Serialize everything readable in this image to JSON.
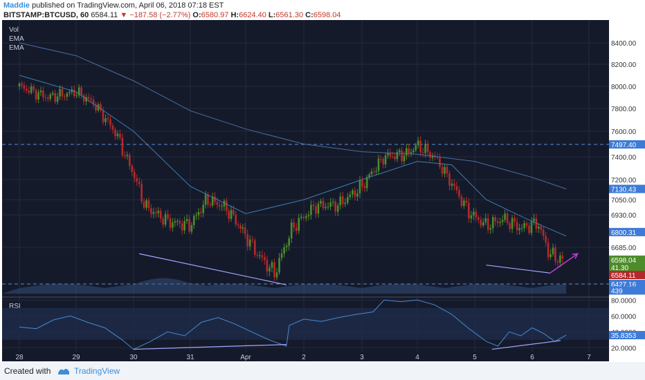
{
  "header": {
    "author": "Maddie",
    "published": "published on TradingView.com, April 06, 2018 07:18 EST",
    "symbol": "BITSTAMP:BTCUSD, 60",
    "last": "6584.11",
    "change": "▼ −187.58 (−2.77%)",
    "o_label": "O:",
    "o_value": "6580.97",
    "h_label": "H:",
    "h_value": "6624.40",
    "l_label": "L:",
    "l_value": "6561.30",
    "c_label": "C:",
    "c_value": "6598.04"
  },
  "legend": [
    "Vol",
    "EMA",
    "EMA"
  ],
  "rsi_label": "RSI",
  "footer": {
    "created": "Created with",
    "brand": "TradingView"
  },
  "colors": {
    "bg": "#151a2b",
    "up": "#4d8c2a",
    "down": "#b32a2a",
    "ema_fast": "#3b7fb0",
    "ema_slow": "#4a6fa0",
    "annotation": "#a0a8ff",
    "arrow": "#c43cd8"
  },
  "chart_data": [
    {
      "type": "candlestick",
      "x_ticks": [
        "28",
        "29",
        "30",
        "31",
        "Apr",
        "2",
        "3",
        "4",
        "5",
        "6",
        "7"
      ],
      "y_ticks": [
        8400,
        8200,
        8000,
        7800,
        7600,
        7400,
        7200,
        7050,
        6930,
        6685
      ],
      "y_tick_labels": [
        "8400.00",
        "8200.00",
        "8000.00",
        "7800.00",
        "7600.00",
        "7400.00",
        "7200.00",
        "7050.00",
        "6930.00",
        "6685.00"
      ],
      "price_markers": [
        {
          "label": "7497.40",
          "value": 7497.4,
          "color": "#3d7bd6"
        },
        {
          "label": "7130.43",
          "value": 7130.43,
          "color": "#3d7bd6"
        },
        {
          "label": "6800.31",
          "value": 6800.31,
          "color": "#3d7bd6"
        },
        {
          "label": "6598.04",
          "value": 6598.04,
          "color": "#4d8c2a"
        },
        {
          "label": "41.30",
          "value": 6545,
          "color": "#4d8c2a"
        },
        {
          "label": "6584.11",
          "value": 6490,
          "color": "#b32a2a"
        },
        {
          "label": "6427.16",
          "value": 6427.16,
          "color": "#3d7bd6"
        },
        {
          "label": "439",
          "value": 6375,
          "color": "#3d7bd6"
        }
      ],
      "dashed_levels": [
        7497.4,
        6427.16
      ],
      "close_points": [
        [
          0,
          8000
        ],
        [
          0.5,
          7900
        ],
        [
          1,
          7950
        ],
        [
          1.3,
          7850
        ],
        [
          1.7,
          7580
        ],
        [
          2.0,
          7250
        ],
        [
          2.2,
          7000
        ],
        [
          2.6,
          6880
        ],
        [
          3.0,
          6850
        ],
        [
          3.3,
          7050
        ],
        [
          3.6,
          7000
        ],
        [
          3.8,
          6900
        ],
        [
          4.2,
          6640
        ],
        [
          4.5,
          6500
        ],
        [
          4.8,
          6830
        ],
        [
          5.2,
          7000
        ],
        [
          5.6,
          7010
        ],
        [
          6.0,
          7150
        ],
        [
          6.4,
          7400
        ],
        [
          6.8,
          7420
        ],
        [
          7.0,
          7490
        ],
        [
          7.3,
          7400
        ],
        [
          7.6,
          7170
        ],
        [
          7.9,
          6950
        ],
        [
          8.2,
          6850
        ],
        [
          8.5,
          6900
        ],
        [
          8.8,
          6830
        ],
        [
          9.1,
          6870
        ],
        [
          9.3,
          6640
        ],
        [
          9.5,
          6598
        ]
      ],
      "ema_fast": [
        [
          0,
          8100
        ],
        [
          1,
          7950
        ],
        [
          2,
          7600
        ],
        [
          3,
          7150
        ],
        [
          4,
          6940
        ],
        [
          5,
          7050
        ],
        [
          6,
          7200
        ],
        [
          7,
          7360
        ],
        [
          7.6,
          7330
        ],
        [
          8.2,
          7050
        ],
        [
          9.0,
          6880
        ],
        [
          9.6,
          6770
        ]
      ],
      "ema_slow": [
        [
          0,
          8400
        ],
        [
          1,
          8280
        ],
        [
          2,
          8050
        ],
        [
          3,
          7780
        ],
        [
          4,
          7620
        ],
        [
          5,
          7500
        ],
        [
          6,
          7440
        ],
        [
          7,
          7420
        ],
        [
          8,
          7360
        ],
        [
          9,
          7220
        ],
        [
          9.6,
          7130
        ]
      ],
      "trendlines": [
        {
          "from": [
            2.1,
            6640
          ],
          "to": [
            4.7,
            6420
          ]
        },
        {
          "from": [
            8.2,
            6560
          ],
          "to": [
            9.3,
            6505
          ]
        }
      ],
      "arrow": {
        "from": [
          9.3,
          6500
        ],
        "to": [
          9.8,
          6640
        ]
      }
    },
    {
      "type": "line",
      "title": "RSI",
      "ylim": [
        15,
        82
      ],
      "y_ticks": [
        80,
        60,
        40,
        20
      ],
      "y_tick_labels": [
        "80.0000",
        "60.0000",
        "40.0000",
        "20.0000"
      ],
      "current_label": "35.8353",
      "current_value": 35.8353,
      "values": [
        [
          0,
          46
        ],
        [
          0.3,
          44
        ],
        [
          0.6,
          55
        ],
        [
          0.9,
          60
        ],
        [
          1.2,
          52
        ],
        [
          1.5,
          45
        ],
        [
          1.8,
          30
        ],
        [
          2.0,
          18
        ],
        [
          2.3,
          28
        ],
        [
          2.6,
          40
        ],
        [
          2.9,
          35
        ],
        [
          3.2,
          52
        ],
        [
          3.5,
          58
        ],
        [
          3.8,
          50
        ],
        [
          4.1,
          40
        ],
        [
          4.4,
          30
        ],
        [
          4.7,
          22
        ],
        [
          4.75,
          48
        ],
        [
          5.0,
          56
        ],
        [
          5.3,
          53
        ],
        [
          5.6,
          58
        ],
        [
          5.9,
          62
        ],
        [
          6.2,
          65
        ],
        [
          6.4,
          80
        ],
        [
          6.7,
          78
        ],
        [
          7.0,
          80
        ],
        [
          7.3,
          74
        ],
        [
          7.6,
          62
        ],
        [
          7.9,
          44
        ],
        [
          8.2,
          28
        ],
        [
          8.4,
          22
        ],
        [
          8.6,
          40
        ],
        [
          8.8,
          35
        ],
        [
          9.0,
          45
        ],
        [
          9.2,
          38
        ],
        [
          9.4,
          28
        ],
        [
          9.6,
          35.8
        ]
      ],
      "trendlines": [
        {
          "from": [
            2.0,
            18
          ],
          "to": [
            4.7,
            24
          ]
        },
        {
          "from": [
            8.3,
            18
          ],
          "to": [
            9.5,
            29
          ]
        }
      ]
    }
  ]
}
